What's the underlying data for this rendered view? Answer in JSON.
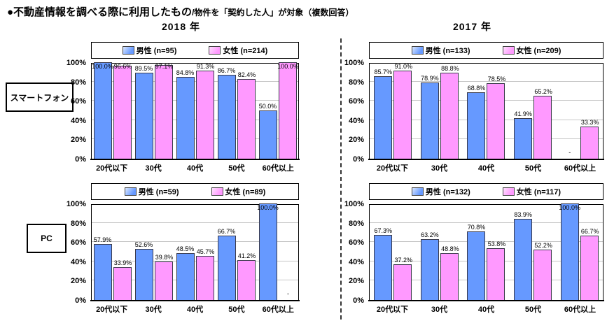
{
  "title": {
    "main": "●不動産情報を調べる際に利用したもの",
    "sub": "/物件を「契約した人」が対象（複数回答）"
  },
  "columns": [
    "2018 年",
    "2017 年"
  ],
  "row_labels": [
    "スマートフォン",
    "PC"
  ],
  "colors": {
    "male": "#6699ff",
    "female": "#ff99ff",
    "grid": "#c6c6c6",
    "plot_border": "#000000"
  },
  "chart_data": [
    {
      "type": "bar",
      "panel": "2018-smartphone",
      "title": "2018年 スマートフォン",
      "categories": [
        "20代以下",
        "30代",
        "40代",
        "50代",
        "60代以上"
      ],
      "yticks": [
        "100%",
        "80%",
        "60%",
        "40%",
        "20%",
        "0%"
      ],
      "ylim": [
        0,
        100
      ],
      "series": [
        {
          "name": "男性 (n=95)",
          "key": "male",
          "values": [
            100.0,
            89.5,
            84.8,
            86.7,
            50.0
          ],
          "labels": [
            "100.0%",
            "89.5%",
            "84.8%",
            "86.7%",
            "50.0%"
          ]
        },
        {
          "name": "女性 (n=214)",
          "key": "female",
          "values": [
            96.6,
            97.1,
            91.3,
            82.4,
            100.0
          ],
          "labels": [
            "96.6%",
            "97.1%",
            "91.3%",
            "82.4%",
            "100.0%"
          ]
        }
      ]
    },
    {
      "type": "bar",
      "panel": "2017-smartphone",
      "title": "2017年 スマートフォン",
      "categories": [
        "20代以下",
        "30代",
        "40代",
        "50代",
        "60代以上"
      ],
      "yticks": [
        "100%",
        "80%",
        "60%",
        "40%",
        "20%",
        "0%"
      ],
      "ylim": [
        0,
        100
      ],
      "series": [
        {
          "name": "男性 (n=133)",
          "key": "male",
          "values": [
            85.7,
            78.9,
            68.8,
            41.9,
            null
          ],
          "labels": [
            "85.7%",
            "78.9%",
            "68.8%",
            "41.9%",
            "-"
          ]
        },
        {
          "name": "女性 (n=209)",
          "key": "female",
          "values": [
            91.0,
            88.8,
            78.5,
            65.2,
            33.3
          ],
          "labels": [
            "91.0%",
            "88.8%",
            "78.5%",
            "65.2%",
            "33.3%"
          ]
        }
      ]
    },
    {
      "type": "bar",
      "panel": "2018-pc",
      "title": "2018年 PC",
      "categories": [
        "20代以下",
        "30代",
        "40代",
        "50代",
        "60代以上"
      ],
      "yticks": [
        "100%",
        "80%",
        "60%",
        "40%",
        "20%",
        "0%"
      ],
      "ylim": [
        0,
        100
      ],
      "series": [
        {
          "name": "男性 (n=59)",
          "key": "male",
          "values": [
            57.9,
            52.6,
            48.5,
            66.7,
            100.0
          ],
          "labels": [
            "57.9%",
            "52.6%",
            "48.5%",
            "66.7%",
            "100.0%"
          ]
        },
        {
          "name": "女性 (n=89)",
          "key": "female",
          "values": [
            33.9,
            39.8,
            45.7,
            41.2,
            null
          ],
          "labels": [
            "33.9%",
            "39.8%",
            "45.7%",
            "41.2%",
            "-"
          ]
        }
      ]
    },
    {
      "type": "bar",
      "panel": "2017-pc",
      "title": "2017年 PC",
      "categories": [
        "20代以下",
        "30代",
        "40代",
        "50代",
        "60代以上"
      ],
      "yticks": [
        "100%",
        "80%",
        "60%",
        "40%",
        "20%",
        "0%"
      ],
      "ylim": [
        0,
        100
      ],
      "series": [
        {
          "name": "男性 (n=132)",
          "key": "male",
          "values": [
            67.3,
            63.2,
            70.8,
            83.9,
            100.0
          ],
          "labels": [
            "67.3%",
            "63.2%",
            "70.8%",
            "83.9%",
            "100.0%"
          ]
        },
        {
          "name": "女性 (n=117)",
          "key": "female",
          "values": [
            37.2,
            48.8,
            53.8,
            52.2,
            66.7
          ],
          "labels": [
            "37.2%",
            "48.8%",
            "53.8%",
            "52.2%",
            "66.7%"
          ]
        }
      ]
    }
  ]
}
